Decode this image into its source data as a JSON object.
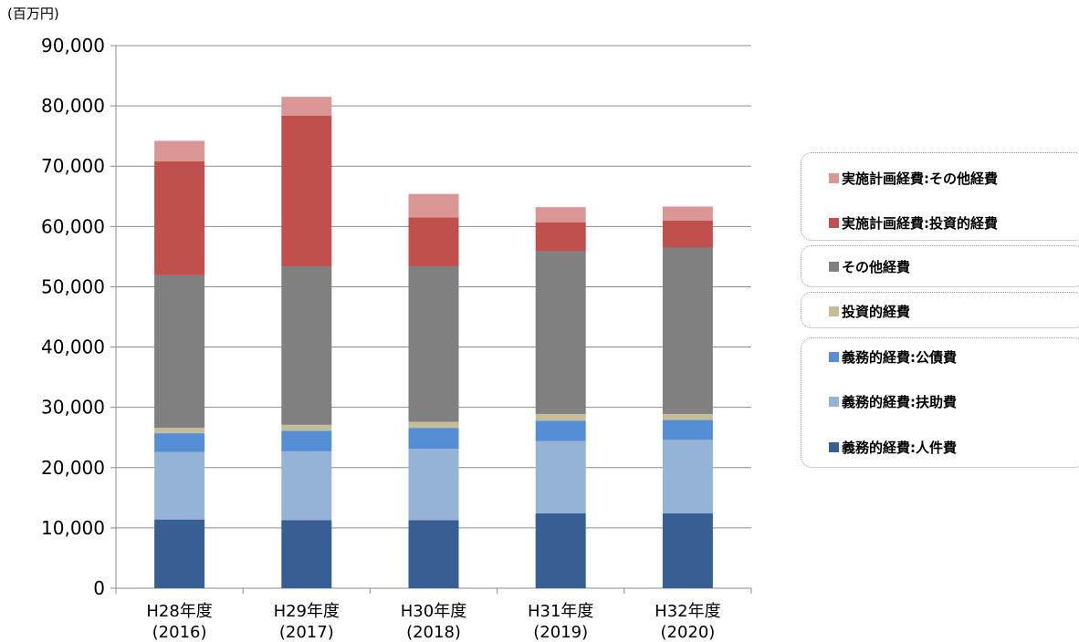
{
  "unit_label": "(百万円)",
  "chart_data": {
    "type": "bar",
    "stacked": true,
    "categories": [
      {
        "line1": "H28年度",
        "line2": "(2016)"
      },
      {
        "line1": "H29年度",
        "line2": "(2017)"
      },
      {
        "line1": "H30年度",
        "line2": "(2018)"
      },
      {
        "line1": "H31年度",
        "line2": "(2019)"
      },
      {
        "line1": "H32年度",
        "line2": "(2020)"
      }
    ],
    "ylim": [
      0,
      90000
    ],
    "yticks": [
      0,
      10000,
      20000,
      30000,
      40000,
      50000,
      60000,
      70000,
      80000,
      90000
    ],
    "ytick_labels": [
      "0",
      "10,000",
      "20,000",
      "30,000",
      "40,000",
      "50,000",
      "60,000",
      "70,000",
      "80,000",
      "90,000"
    ],
    "grid": true,
    "legend_position": "right",
    "series": [
      {
        "name": "義務的経費:人件費",
        "color": "#375f93",
        "values": [
          11400,
          11300,
          11300,
          12400,
          12400
        ]
      },
      {
        "name": "義務的経費:扶助費",
        "color": "#95b3d7",
        "values": [
          11200,
          11400,
          11800,
          12000,
          12200
        ]
      },
      {
        "name": "義務的経費:公債費",
        "color": "#558ed5",
        "values": [
          3100,
          3400,
          3500,
          3400,
          3300
        ]
      },
      {
        "name": "投資的経費",
        "color": "#c4bd97",
        "values": [
          900,
          1000,
          1000,
          1100,
          1000
        ]
      },
      {
        "name": "その他経費",
        "color": "#808080",
        "values": [
          25300,
          26300,
          25800,
          27000,
          27600
        ]
      },
      {
        "name": "実施計画経費:投資的経費",
        "color": "#c0504d",
        "values": [
          18900,
          25000,
          8100,
          4800,
          4500
        ]
      },
      {
        "name": "実施計画経費:その他経費",
        "color": "#d99694",
        "values": [
          3400,
          3100,
          3900,
          2500,
          2300
        ]
      }
    ]
  },
  "legend": {
    "groups": [
      {
        "items": [
          "実施計画経費:その他経費",
          "実施計画経費:投資的経費"
        ]
      },
      {
        "items": [
          "その他経費"
        ]
      },
      {
        "items": [
          "投資的経費"
        ]
      },
      {
        "items": [
          "義務的経費:公債費",
          "義務的経費:扶助費",
          "義務的経費:人件費"
        ]
      }
    ]
  }
}
